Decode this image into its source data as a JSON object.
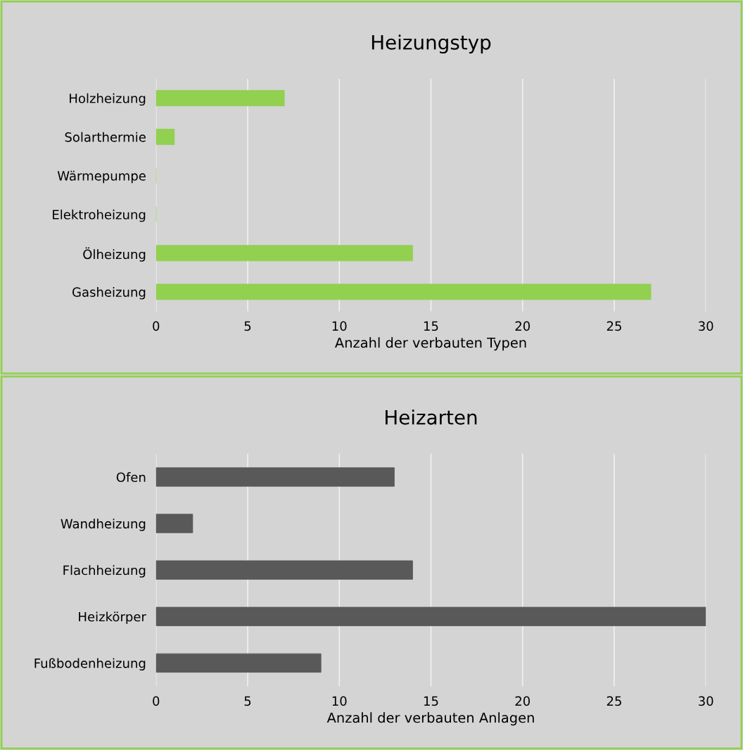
{
  "chart_data": [
    {
      "type": "bar",
      "orientation": "horizontal",
      "title": "Heizungstyp",
      "xlabel": "Anzahl der verbauten Typen",
      "categories": [
        "Holzheizung",
        "Solarthermie",
        "Wärmepumpe",
        "Elektroheizung",
        "Ölheizung",
        "Gasheizung"
      ],
      "values": [
        7,
        1,
        0,
        0,
        14,
        27
      ],
      "color": "#92d050",
      "xlim": [
        0,
        30
      ],
      "xticks": [
        0,
        5,
        10,
        15,
        20,
        25,
        30
      ],
      "grid": "x"
    },
    {
      "type": "bar",
      "orientation": "horizontal",
      "title": "Heizarten",
      "xlabel": "Anzahl der verbauten Anlagen",
      "categories": [
        "Ofen",
        "Wandheizung",
        "Flachheizung",
        "Heizkörper",
        "Fußbodenheizung"
      ],
      "values": [
        13,
        2,
        14,
        30,
        9
      ],
      "color": "#595959",
      "xlim": [
        0,
        30
      ],
      "xticks": [
        0,
        5,
        10,
        15,
        20,
        25,
        30
      ],
      "grid": "x"
    }
  ]
}
